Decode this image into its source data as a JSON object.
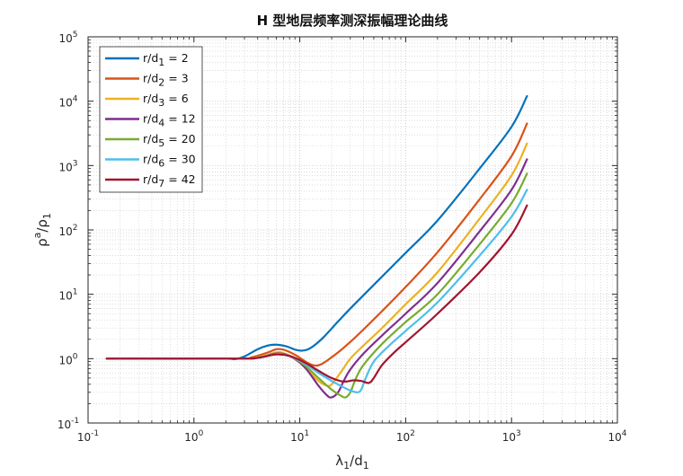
{
  "chart_data": {
    "type": "line",
    "title": "H 型地层频率测深振幅理论曲线",
    "xlabel": {
      "main": "λ",
      "sub1": "1",
      "mid": "/d",
      "sub2": "1"
    },
    "ylabel": {
      "main": "ρ",
      "sup": "a",
      "mid": "/ρ",
      "sub": "1"
    },
    "xscale": "log",
    "yscale": "log",
    "xlim": [
      0.1,
      10000
    ],
    "ylim": [
      0.1,
      100000
    ],
    "grid": true,
    "legend_position": "top-left",
    "x_ticks": [
      {
        "base": "10",
        "exp": "-1",
        "value": 0.1
      },
      {
        "base": "10",
        "exp": "0",
        "value": 1
      },
      {
        "base": "10",
        "exp": "1",
        "value": 10
      },
      {
        "base": "10",
        "exp": "2",
        "value": 100
      },
      {
        "base": "10",
        "exp": "3",
        "value": 1000
      },
      {
        "base": "10",
        "exp": "4",
        "value": 10000
      }
    ],
    "y_ticks": [
      {
        "base": "10",
        "exp": "-1",
        "value": 0.1
      },
      {
        "base": "10",
        "exp": "0",
        "value": 1
      },
      {
        "base": "10",
        "exp": "1",
        "value": 10
      },
      {
        "base": "10",
        "exp": "2",
        "value": 100
      },
      {
        "base": "10",
        "exp": "3",
        "value": 1000
      },
      {
        "base": "10",
        "exp": "4",
        "value": 10000
      },
      {
        "base": "10",
        "exp": "5",
        "value": 100000
      }
    ],
    "series": [
      {
        "label": {
          "pre": "r/d",
          "sub": "1",
          "post": " = 2"
        },
        "color": "#0072BD",
        "points": [
          [
            0.15,
            1.0
          ],
          [
            1.8,
            1.0
          ],
          [
            2.4,
            0.98
          ],
          [
            3.0,
            1.08
          ],
          [
            4.0,
            1.4
          ],
          [
            5.0,
            1.6
          ],
          [
            6.0,
            1.65
          ],
          [
            7.5,
            1.55
          ],
          [
            9.0,
            1.38
          ],
          [
            10.5,
            1.33
          ],
          [
            12.0,
            1.4
          ],
          [
            14.0,
            1.65
          ],
          [
            17.0,
            2.2
          ],
          [
            22.0,
            3.5
          ],
          [
            30.0,
            6.0
          ],
          [
            50.0,
            14.0
          ],
          [
            100.0,
            44.0
          ],
          [
            200.0,
            140.0
          ],
          [
            500.0,
            900.0
          ],
          [
            1000.0,
            4000.0
          ],
          [
            1400.0,
            12000.0
          ]
        ]
      },
      {
        "label": {
          "pre": "r/d",
          "sub": "2",
          "post": " = 3"
        },
        "color": "#D95319",
        "points": [
          [
            0.15,
            1.0
          ],
          [
            2.5,
            1.0
          ],
          [
            3.5,
            1.05
          ],
          [
            5.0,
            1.25
          ],
          [
            6.0,
            1.4
          ],
          [
            7.0,
            1.38
          ],
          [
            9.0,
            1.15
          ],
          [
            12.0,
            0.85
          ],
          [
            14.0,
            0.78
          ],
          [
            16.0,
            0.82
          ],
          [
            20.0,
            1.05
          ],
          [
            25.0,
            1.4
          ],
          [
            35.0,
            2.3
          ],
          [
            60.0,
            5.5
          ],
          [
            100.0,
            13.0
          ],
          [
            200.0,
            45.0
          ],
          [
            500.0,
            300.0
          ],
          [
            1000.0,
            1400.0
          ],
          [
            1400.0,
            4500.0
          ]
        ]
      },
      {
        "label": {
          "pre": "r/d",
          "sub": "3",
          "post": " = 6"
        },
        "color": "#EDB120",
        "points": [
          [
            0.15,
            1.0
          ],
          [
            2.5,
            1.0
          ],
          [
            4.0,
            1.05
          ],
          [
            6.0,
            1.25
          ],
          [
            7.0,
            1.22
          ],
          [
            9.0,
            1.0
          ],
          [
            12.0,
            0.65
          ],
          [
            15.0,
            0.45
          ],
          [
            18.0,
            0.38
          ],
          [
            20.0,
            0.4
          ],
          [
            25.0,
            0.65
          ],
          [
            30.0,
            1.0
          ],
          [
            40.0,
            1.6
          ],
          [
            60.0,
            3.0
          ],
          [
            100.0,
            7.0
          ],
          [
            200.0,
            22.0
          ],
          [
            500.0,
            150.0
          ],
          [
            1000.0,
            700.0
          ],
          [
            1400.0,
            2200.0
          ]
        ]
      },
      {
        "label": {
          "pre": "r/d",
          "sub": "4",
          "post": " = 12"
        },
        "color": "#7E2F8E",
        "points": [
          [
            0.15,
            1.0
          ],
          [
            2.5,
            1.0
          ],
          [
            4.0,
            1.03
          ],
          [
            6.0,
            1.2
          ],
          [
            8.0,
            1.1
          ],
          [
            11.0,
            0.75
          ],
          [
            15.0,
            0.38
          ],
          [
            18.0,
            0.27
          ],
          [
            20.0,
            0.25
          ],
          [
            23.0,
            0.3
          ],
          [
            26.0,
            0.45
          ],
          [
            30.0,
            0.68
          ],
          [
            40.0,
            1.2
          ],
          [
            60.0,
            2.3
          ],
          [
            100.0,
            5.0
          ],
          [
            200.0,
            15.0
          ],
          [
            500.0,
            95.0
          ],
          [
            1000.0,
            420.0
          ],
          [
            1400.0,
            1250.0
          ]
        ]
      },
      {
        "label": {
          "pre": "r/d",
          "sub": "5",
          "post": " = 20"
        },
        "color": "#77AC30",
        "points": [
          [
            0.15,
            1.0
          ],
          [
            2.5,
            1.0
          ],
          [
            4.0,
            1.03
          ],
          [
            6.0,
            1.18
          ],
          [
            8.0,
            1.1
          ],
          [
            11.0,
            0.8
          ],
          [
            15.0,
            0.5
          ],
          [
            20.0,
            0.33
          ],
          [
            24.0,
            0.27
          ],
          [
            27.0,
            0.25
          ],
          [
            30.0,
            0.3
          ],
          [
            34.0,
            0.5
          ],
          [
            40.0,
            0.8
          ],
          [
            60.0,
            1.7
          ],
          [
            100.0,
            3.7
          ],
          [
            200.0,
            10.0
          ],
          [
            500.0,
            60.0
          ],
          [
            1000.0,
            260.0
          ],
          [
            1400.0,
            750.0
          ]
        ]
      },
      {
        "label": {
          "pre": "r/d",
          "sub": "6",
          "post": " = 30"
        },
        "color": "#4DBEEE",
        "points": [
          [
            0.15,
            1.0
          ],
          [
            2.5,
            1.0
          ],
          [
            4.0,
            1.03
          ],
          [
            6.0,
            1.17
          ],
          [
            8.0,
            1.1
          ],
          [
            11.0,
            0.85
          ],
          [
            15.0,
            0.6
          ],
          [
            20.0,
            0.45
          ],
          [
            25.0,
            0.37
          ],
          [
            30.0,
            0.32
          ],
          [
            35.0,
            0.3
          ],
          [
            38.0,
            0.33
          ],
          [
            42.0,
            0.5
          ],
          [
            50.0,
            0.9
          ],
          [
            70.0,
            1.6
          ],
          [
            100.0,
            2.7
          ],
          [
            200.0,
            7.5
          ],
          [
            500.0,
            40.0
          ],
          [
            1000.0,
            160.0
          ],
          [
            1400.0,
            420.0
          ]
        ]
      },
      {
        "label": {
          "pre": "r/d",
          "sub": "7",
          "post": " = 42"
        },
        "color": "#A2142F",
        "points": [
          [
            0.15,
            1.0
          ],
          [
            2.5,
            1.0
          ],
          [
            4.0,
            1.03
          ],
          [
            6.0,
            1.16
          ],
          [
            8.0,
            1.1
          ],
          [
            11.0,
            0.88
          ],
          [
            15.0,
            0.65
          ],
          [
            20.0,
            0.5
          ],
          [
            26.0,
            0.44
          ],
          [
            32.0,
            0.46
          ],
          [
            38.0,
            0.45
          ],
          [
            45.0,
            0.42
          ],
          [
            50.0,
            0.5
          ],
          [
            60.0,
            0.8
          ],
          [
            80.0,
            1.3
          ],
          [
            100.0,
            1.8
          ],
          [
            200.0,
            5.0
          ],
          [
            500.0,
            22.0
          ],
          [
            1000.0,
            85.0
          ],
          [
            1400.0,
            240.0
          ]
        ]
      }
    ]
  }
}
